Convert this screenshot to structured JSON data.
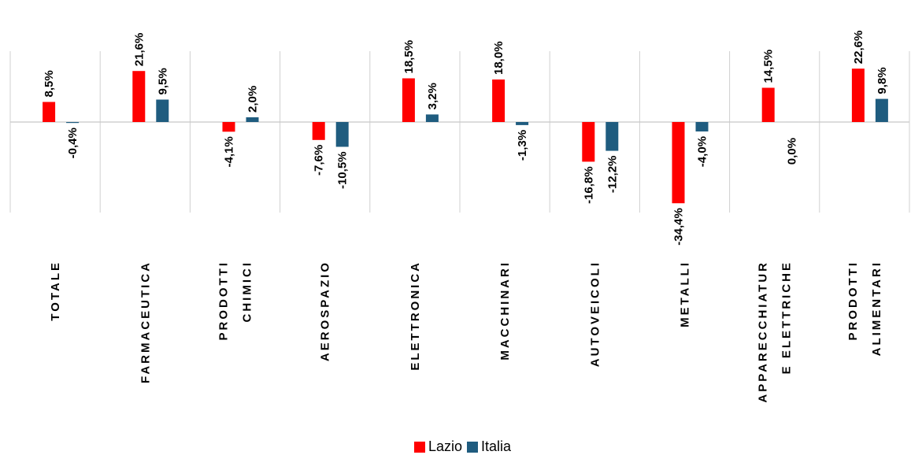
{
  "chart_data": {
    "type": "bar",
    "categories": [
      [
        "TOTALE"
      ],
      [
        "FARMACEUTICA"
      ],
      [
        "PRODOTTI",
        "CHIMICI"
      ],
      [
        "AEROSPAZIO"
      ],
      [
        "ELETTRONICA"
      ],
      [
        "MACCHINARI"
      ],
      [
        "AUTOVEICOLI"
      ],
      [
        "METALLI"
      ],
      [
        "APPARECCHIATUR",
        "E ELETTRICHE"
      ],
      [
        "PRODOTTI",
        "ALIMENTARI"
      ]
    ],
    "series": [
      {
        "name": "Lazio",
        "color": "#ff0000",
        "values": [
          8.5,
          21.6,
          -4.1,
          -7.6,
          18.5,
          18.0,
          -16.8,
          -34.4,
          14.5,
          22.6
        ],
        "labels": [
          "8,5%",
          "21,6%",
          "-4,1%",
          "-7,6%",
          "18,5%",
          "18,0%",
          "-16,8%",
          "-34,4%",
          "14,5%",
          "22,6%"
        ]
      },
      {
        "name": "Italia",
        "color": "#1f5c7f",
        "values": [
          -0.4,
          9.5,
          2.0,
          -10.5,
          3.2,
          -1.3,
          -12.2,
          -4.0,
          0.0,
          9.8
        ],
        "labels": [
          "-0,4%",
          "9,5%",
          "2,0%",
          "-10,5%",
          "3,2%",
          "-1,3%",
          "-12,2%",
          "-4,0%",
          "0,0%",
          "9,8%"
        ]
      }
    ],
    "legend": "bottom",
    "grid": "vertical category separators"
  }
}
